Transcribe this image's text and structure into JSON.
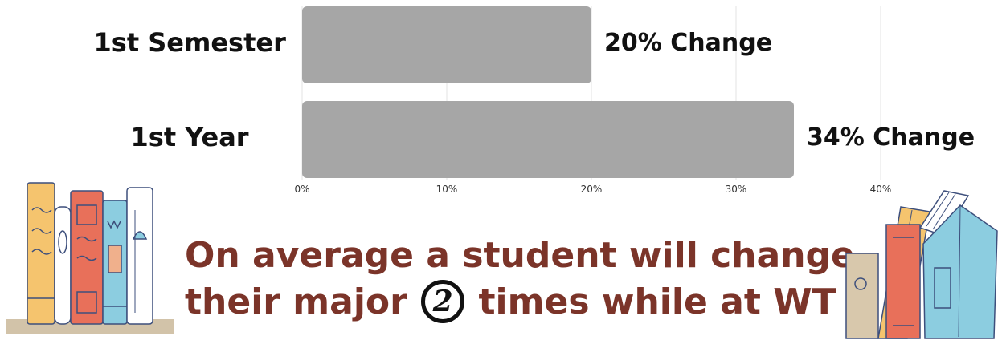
{
  "chart_data": {
    "type": "bar",
    "orientation": "horizontal",
    "categories": [
      "1st Semester",
      "1st Year"
    ],
    "values": [
      20,
      34
    ],
    "data_labels": [
      "20% Change",
      "34% Change"
    ],
    "xlim": [
      0,
      40
    ],
    "xticks": [
      "0%",
      "10%",
      "20%",
      "30%",
      "40%"
    ],
    "grid": true,
    "bar_color": "#a6a6a6"
  },
  "headline": {
    "line1": "On average a student will change",
    "line2_before": "their major",
    "line2_number": "2",
    "line2_after": "times while at WT"
  },
  "colors": {
    "headline_text": "#7b3429",
    "bar": "#a6a6a6",
    "grid": "#e3e3e3"
  },
  "decorations": {
    "left_icon": "books-on-shelf-icon",
    "right_icon": "stacked-books-icon"
  }
}
